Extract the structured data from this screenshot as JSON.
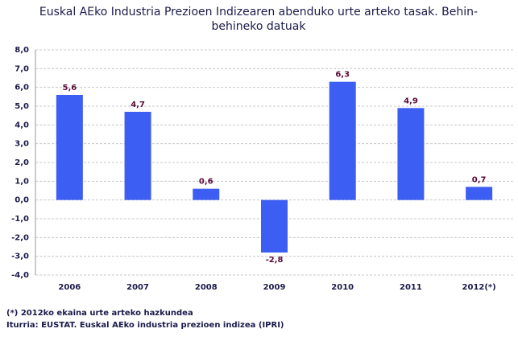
{
  "chart_data": {
    "type": "bar",
    "title": [
      "Euskal AEko Industria Prezioen Indizearen abenduko urte arteko tasak.  Behin-",
      "behineko datuak"
    ],
    "categories": [
      "2006",
      "2007",
      "2008",
      "2009",
      "2010",
      "2011",
      "2012(*)"
    ],
    "values": [
      5.6,
      4.7,
      0.6,
      -2.8,
      6.3,
      4.9,
      0.7
    ],
    "value_labels": [
      "5,6",
      "4,7",
      "0,6",
      "-2,8",
      "6,3",
      "4,9",
      "0,7"
    ],
    "color": "#3d5ef2",
    "ylim": [
      -4,
      8
    ],
    "yticks": [
      {
        "value": -4,
        "label": "-4,0"
      },
      {
        "value": -3,
        "label": "-3,0"
      },
      {
        "value": -2,
        "label": "-2,0"
      },
      {
        "value": -1,
        "label": "-1,0"
      },
      {
        "value": 0,
        "label": "0,0"
      },
      {
        "value": 1,
        "label": "1,0"
      },
      {
        "value": 2,
        "label": "2,0"
      },
      {
        "value": 3,
        "label": "3,0"
      },
      {
        "value": 4,
        "label": "4,0"
      },
      {
        "value": 5,
        "label": "5,0"
      },
      {
        "value": 6,
        "label": "6,0"
      },
      {
        "value": 7,
        "label": "7,0"
      },
      {
        "value": 8,
        "label": "8,0"
      }
    ],
    "grid": true,
    "notes": [
      "(*) 2012ko ekaina urte arteko hazkundea",
      "Iturria: EUSTAT. Euskal AEko industria prezioen indizea (IPRI)"
    ]
  }
}
